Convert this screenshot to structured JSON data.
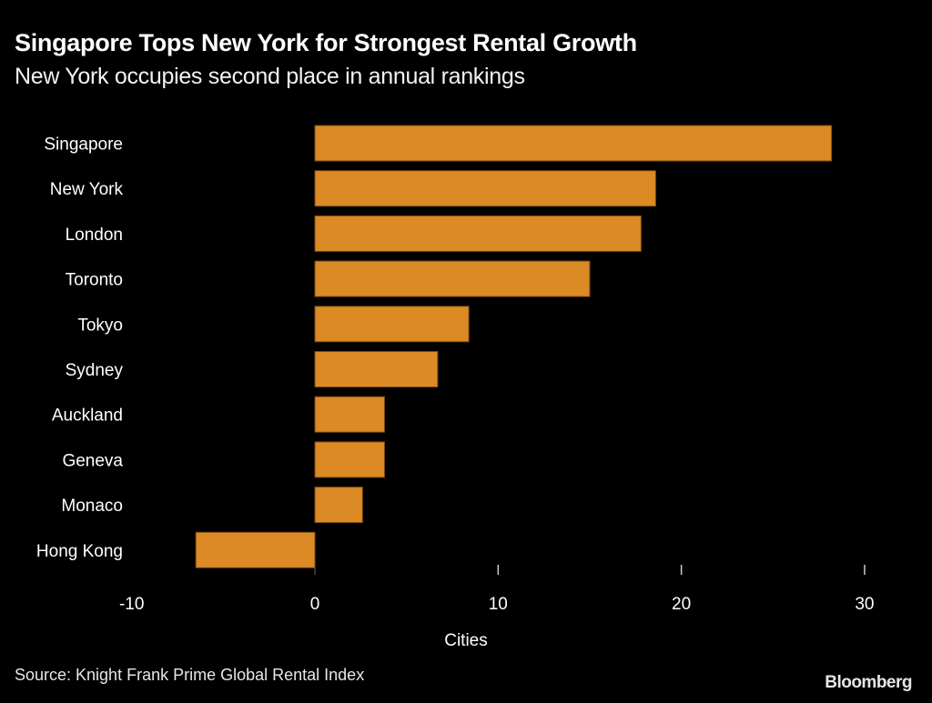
{
  "header": {
    "title": "Singapore Tops New York for Strongest Rental Growth",
    "subtitle": "New York occupies second place in annual rankings"
  },
  "footer": {
    "source": "Source: Knight Frank Prime Global Rental Index",
    "logo": "Bloomberg"
  },
  "colors": {
    "bar": "#dc8a25",
    "background": "#000000",
    "text": "#ffffff"
  },
  "chart_data": {
    "type": "bar",
    "orientation": "horizontal",
    "title": "Singapore Tops New York for Strongest Rental Growth",
    "subtitle": "New York occupies second place in annual rankings",
    "categories": [
      "Singapore",
      "New York",
      "London",
      "Toronto",
      "Tokyo",
      "Sydney",
      "Auckland",
      "Geneva",
      "Monaco",
      "Hong Kong"
    ],
    "values": [
      28.2,
      18.6,
      17.8,
      15.0,
      8.4,
      6.7,
      3.8,
      3.8,
      2.6,
      -6.5
    ],
    "xlabel": "Cities",
    "ylabel": "",
    "xlim": [
      -10,
      30
    ],
    "xticks": [
      -10,
      0,
      10,
      20,
      30
    ],
    "xtick_labels": [
      "-10",
      "0",
      "10",
      "20",
      "30"
    ],
    "grid": false,
    "legend": "none"
  }
}
